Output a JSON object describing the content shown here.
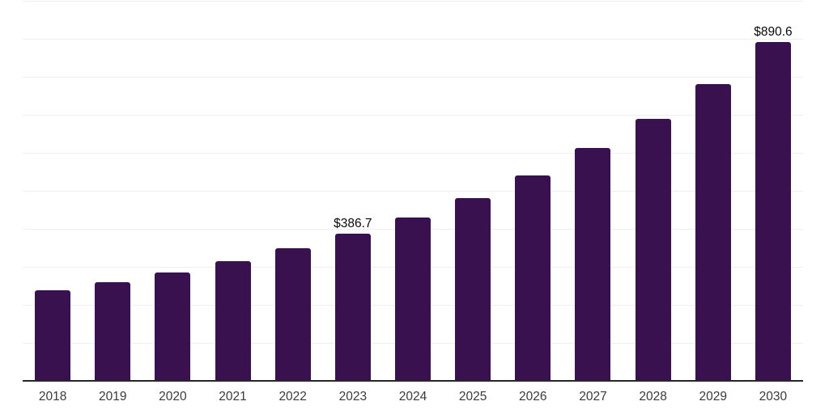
{
  "chart_data": {
    "type": "bar",
    "title": "",
    "xlabel": "",
    "ylabel": "",
    "categories": [
      "2018",
      "2019",
      "2020",
      "2021",
      "2022",
      "2023",
      "2024",
      "2025",
      "2026",
      "2027",
      "2028",
      "2029",
      "2030"
    ],
    "values": [
      239,
      260,
      286,
      314,
      348,
      386.7,
      430,
      481,
      540,
      612,
      690,
      781,
      890.6
    ],
    "data_labels": {
      "2023": "$386.7",
      "2030": "$890.6"
    },
    "ylim": [
      0,
      1000
    ],
    "grid_interval": 100,
    "grid": "horizontal-only",
    "legend": false,
    "colors": {
      "bar": "#38114E",
      "gridline": "#efefef",
      "axis_line": "#262626",
      "tick_label": "#3a3a3a",
      "value_label": "#0a0a0a",
      "background": "#ffffff"
    }
  }
}
